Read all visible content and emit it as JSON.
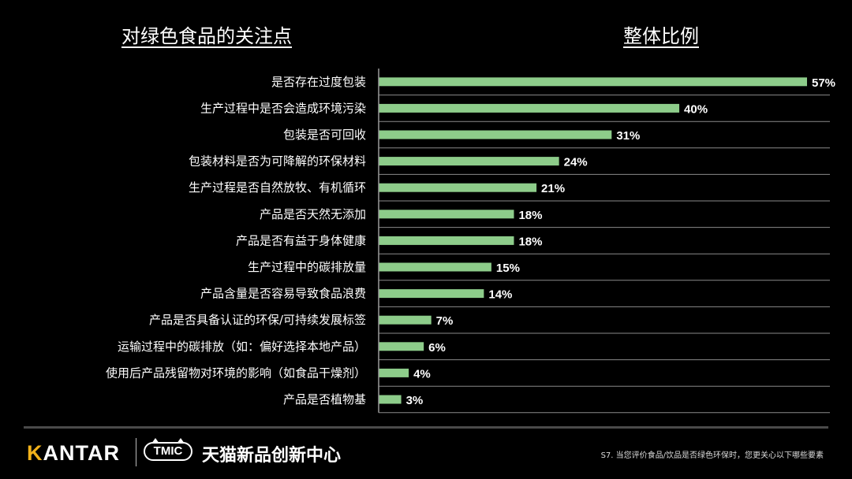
{
  "headings": {
    "left": "对绿色食品的关注点",
    "right": "整体比例"
  },
  "colors": {
    "bar": "#8dcc8a",
    "separator": "#8a8a8a",
    "axis": "#9a9a9a",
    "background": "#000000",
    "brand_accent": "#f2b21a"
  },
  "chart_data": {
    "type": "bar",
    "orientation": "horizontal",
    "title": "",
    "xlabel": "",
    "ylabel": "",
    "value_format": "percent",
    "xlim": [
      0,
      57
    ],
    "grid": false,
    "legend": "none",
    "categories": [
      "是否存在过度包装",
      "生产过程中是否会造成环境污染",
      "包装是否可回收",
      "包装材料是否为可降解的环保材料",
      "生产过程是否自然放牧、有机循环",
      "产品是否天然无添加",
      "产品是否有益于身体健康",
      "生产过程中的碳排放量",
      "产品含量是否容易导致食品浪费",
      "产品是否具备认证的环保/可持续发展标签",
      "运输过程中的碳排放（如：偏好选择本地产品）",
      "使用后产品残留物对环境的影响（如食品干燥剂）",
      "产品是否植物基"
    ],
    "values": [
      57,
      40,
      31,
      24,
      21,
      18,
      18,
      15,
      14,
      7,
      6,
      4,
      3
    ],
    "value_labels": [
      "57%",
      "40%",
      "31%",
      "24%",
      "21%",
      "18%",
      "18%",
      "15%",
      "14%",
      "7%",
      "6%",
      "4%",
      "3%"
    ]
  },
  "footer": {
    "kantar_first": "K",
    "kantar_rest": "ANTAR",
    "tmic_badge": "TMIC",
    "tmic_name": "天猫新品创新中心",
    "footnote": "S7. 当您评价食品/饮品是否绿色环保时，您更关心以下哪些要素"
  }
}
